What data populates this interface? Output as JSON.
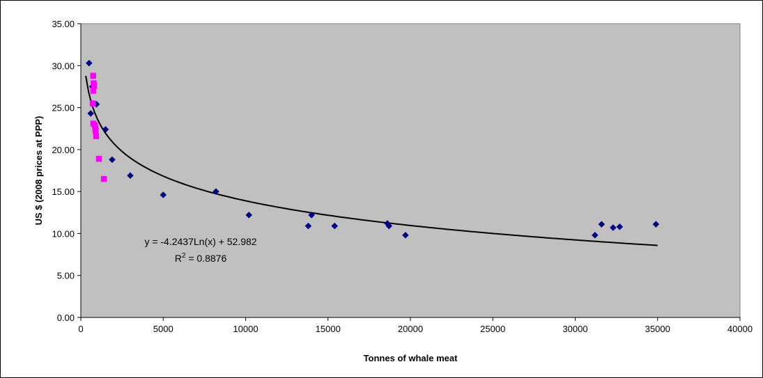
{
  "chart_data": {
    "type": "scatter",
    "xlabel": "Tonnes of whale meat",
    "ylabel": "US $ (2008 prices at PPP)",
    "xlim": [
      0,
      40000
    ],
    "ylim": [
      0,
      35
    ],
    "x_ticks": [
      "0",
      "5000",
      "10000",
      "15000",
      "20000",
      "25000",
      "30000",
      "35000",
      "40000"
    ],
    "y_ticks": [
      "0.00",
      "5.00",
      "10.00",
      "15.00",
      "20.00",
      "25.00",
      "30.00",
      "35.00"
    ],
    "plot_background": "#c0c0c0",
    "grid": false,
    "legend": "none",
    "series": [
      {
        "marker": "diamond",
        "color": "#000080",
        "points": [
          [
            500,
            30.3
          ],
          [
            600,
            24.3
          ],
          [
            700,
            27.5
          ],
          [
            950,
            25.4
          ],
          [
            1500,
            22.4
          ],
          [
            1900,
            18.8
          ],
          [
            3000,
            16.9
          ],
          [
            5000,
            14.6
          ],
          [
            8200,
            15.0
          ],
          [
            10200,
            12.2
          ],
          [
            13800,
            10.9
          ],
          [
            14000,
            12.2
          ],
          [
            15400,
            10.9
          ],
          [
            18600,
            11.2
          ],
          [
            18700,
            10.9
          ],
          [
            19700,
            9.8
          ],
          [
            31200,
            9.8
          ],
          [
            31600,
            11.1
          ],
          [
            32300,
            10.7
          ],
          [
            32700,
            10.8
          ],
          [
            34900,
            11.1
          ]
        ]
      },
      {
        "marker": "square",
        "color": "#ff00ff",
        "points": [
          [
            750,
            28.8
          ],
          [
            780,
            27.9
          ],
          [
            800,
            27.6
          ],
          [
            760,
            27.0
          ],
          [
            720,
            25.5
          ],
          [
            760,
            23.1
          ],
          [
            850,
            22.9
          ],
          [
            880,
            22.5
          ],
          [
            900,
            22.2
          ],
          [
            930,
            21.6
          ],
          [
            1100,
            18.9
          ],
          [
            1400,
            16.5
          ]
        ]
      }
    ],
    "trendline": {
      "type": "logarithmic",
      "a": -4.2437,
      "b": 52.982,
      "x_range": [
        300,
        35000
      ],
      "color": "#000000",
      "equation_label": "y = -4.2437Ln(x) + 52.982",
      "r2_prefix": "R",
      "r2_sup": "2",
      "r2_suffix": " = 0.8876"
    }
  }
}
